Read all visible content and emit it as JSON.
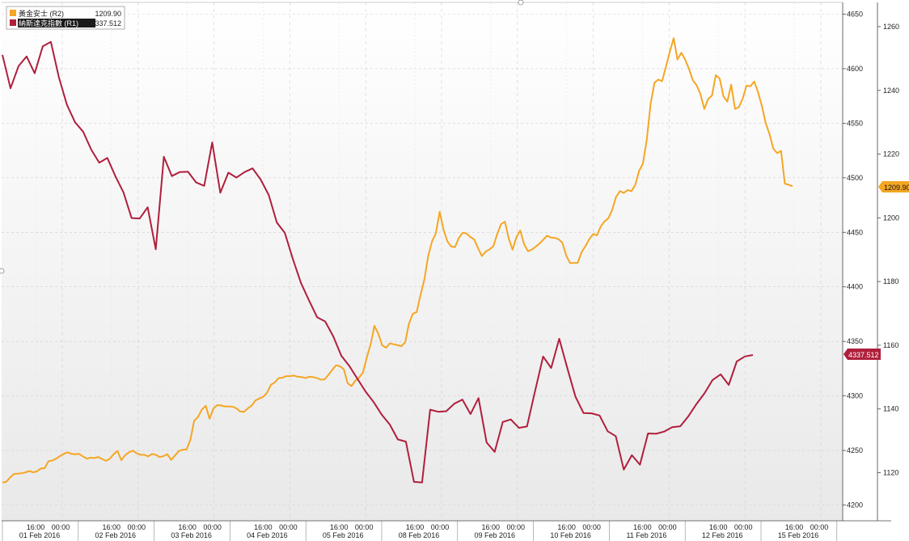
{
  "colors": {
    "gold": "#f5a623",
    "nasdaq": "#b01f3c",
    "grid": "#cfcfcf",
    "axis": "#444444"
  },
  "chart_data": {
    "type": "line",
    "legend_position": "top-left",
    "grid": true,
    "right_axis_outer": {
      "ticks": [
        1120,
        1140,
        1160,
        1180,
        1200,
        1220,
        1240,
        1260
      ],
      "range": [
        1109,
        1266
      ]
    },
    "right_axis_inner": {
      "ticks": [
        4200,
        4250,
        4300,
        4350,
        4400,
        4450,
        4500,
        4550,
        4600,
        4650
      ],
      "range": [
        4193,
        4657
      ]
    },
    "x_time_labels": [
      "16:00",
      "00:00",
      "16:00",
      "00:00",
      "16:00",
      "00:00",
      "16:00",
      "00:00",
      "16:00",
      "00:00",
      "16:00",
      "00:00",
      "16:00",
      "00:00",
      "16:00",
      "00:00",
      "16:00",
      "00:00",
      "16:00",
      "00:00",
      "16:00",
      "00:00"
    ],
    "x_date_labels": [
      "01 Feb 2016",
      "02 Feb 2016",
      "03 Feb 2016",
      "04 Feb 2016",
      "05 Feb 2016",
      "08 Feb 2016",
      "09 Feb 2016",
      "10 Feb 2016",
      "11 Feb 2016",
      "12 Feb 2016",
      "15 Feb 2016"
    ],
    "series": [
      {
        "name": "黃金安士 (R2)",
        "last_value": "1209.90",
        "axis": "outer",
        "values": [
          1116.9,
          1117.1,
          1118.5,
          1119.6,
          1119.7,
          1119.8,
          1120.1,
          1120.5,
          1120.1,
          1120.4,
          1121.3,
          1121.4,
          1123.6,
          1123.8,
          1124.4,
          1125.2,
          1125.9,
          1126.4,
          1125.9,
          1125.8,
          1125.9,
          1125.1,
          1124.4,
          1124.7,
          1124.6,
          1124.9,
          1124.3,
          1123.7,
          1124.4,
          1125.8,
          1126.8,
          1123.9,
          1125.5,
          1126.4,
          1126.9,
          1126.1,
          1125.6,
          1125.6,
          1125.1,
          1125.9,
          1125.6,
          1124.9,
          1125.2,
          1125.8,
          1124.0,
          1125.4,
          1126.8,
          1127.2,
          1127.3,
          1130.3,
          1136.3,
          1137.5,
          1139.8,
          1141.0,
          1136.9,
          1140.1,
          1141.2,
          1141.1,
          1140.8,
          1140.8,
          1140.7,
          1140.2,
          1139.2,
          1139.1,
          1140.2,
          1141.1,
          1142.7,
          1143.3,
          1143.8,
          1145.1,
          1147.6,
          1148.3,
          1149.7,
          1149.8,
          1150.3,
          1150.3,
          1150.5,
          1150.1,
          1150.0,
          1149.7,
          1150.1,
          1150.0,
          1149.7,
          1149.2,
          1149.3,
          1150.7,
          1152.3,
          1153.7,
          1153.4,
          1152.5,
          1148.1,
          1147.2,
          1148.8,
          1149.9,
          1151.4,
          1156.2,
          1160.3,
          1166.1,
          1163.6,
          1160.0,
          1159.2,
          1160.6,
          1160.3,
          1160.0,
          1159.7,
          1160.9,
          1166.8,
          1169.9,
          1170.4,
          1175.8,
          1180.6,
          1187.9,
          1192.6,
          1195.1,
          1201.9,
          1196.3,
          1192.6,
          1191.0,
          1190.8,
          1193.7,
          1195.3,
          1195.1,
          1194.0,
          1193.2,
          1190.5,
          1188.0,
          1189.4,
          1190.1,
          1191.1,
          1194.9,
          1198.0,
          1198.8,
          1193.6,
          1190.0,
          1193.9,
          1196.0,
          1191.8,
          1189.5,
          1190.0,
          1190.9,
          1191.9,
          1193.1,
          1194.4,
          1193.8,
          1193.7,
          1193.3,
          1192.2,
          1188.1,
          1185.8,
          1185.8,
          1185.9,
          1189.2,
          1191.1,
          1193.3,
          1194.9,
          1194.5,
          1197.3,
          1198.9,
          1199.9,
          1202.6,
          1206.6,
          1208.4,
          1207.8,
          1208.7,
          1208.4,
          1210.3,
          1214.8,
          1217.0,
          1224.6,
          1235.8,
          1242.4,
          1243.4,
          1242.9,
          1247.5,
          1252.1,
          1256.4,
          1249.7,
          1251.8,
          1249.7,
          1246.8,
          1243.2,
          1241.6,
          1238.8,
          1234.2,
          1237.3,
          1238.4,
          1244.8,
          1243.7,
          1238.1,
          1236.5,
          1241.8,
          1234.2,
          1234.7,
          1237.4,
          1241.5,
          1241.3,
          1242.8,
          1239.5,
          1235.1,
          1229.8,
          1226.3,
          1221.7,
          1220.3,
          1221.0,
          1210.7,
          1210.4,
          1209.9
        ]
      },
      {
        "name": "納斯達克指數 (R1)",
        "last_value": "4337.512",
        "axis": "inner",
        "values": [
          4612.7,
          4582.0,
          4602.5,
          4611.2,
          4595.8,
          4620.6,
          4624.6,
          4592.2,
          4566.8,
          4550.9,
          4542.3,
          4525.8,
          4513.8,
          4518.2,
          4501.4,
          4486.6,
          4463.1,
          4462.6,
          4473.0,
          4434.4,
          4519.2,
          4501.6,
          4505.3,
          4505.5,
          4495.7,
          4492.6,
          4532.4,
          4486.2,
          4504.7,
          4500.2,
          4505.2,
          4508.6,
          4498.4,
          4484.2,
          4459.0,
          4449.5,
          4425.3,
          4403.4,
          4387.4,
          4372.1,
          4368.3,
          4354.6,
          4336.8,
          4327.3,
          4315.6,
          4304.1,
          4294.4,
          4282.9,
          4273.8,
          4260.1,
          4258.1,
          4221.2,
          4220.7,
          4287.4,
          4285.5,
          4286.0,
          4292.9,
          4296.7,
          4283.4,
          4298.0,
          4257.4,
          4248.7,
          4276.1,
          4278.4,
          4270.7,
          4272.0,
          4304.4,
          4336.1,
          4325.6,
          4352.4,
          4325.5,
          4299.5,
          4284.4,
          4284.1,
          4282.1,
          4267.6,
          4263.2,
          4232.5,
          4245.7,
          4237.0,
          4265.6,
          4265.3,
          4267.3,
          4271.3,
          4272.2,
          4281.4,
          4292.6,
          4302.4,
          4314.6,
          4319.8,
          4310.1,
          4331.6,
          4336.2,
          4337.5
        ]
      }
    ]
  }
}
